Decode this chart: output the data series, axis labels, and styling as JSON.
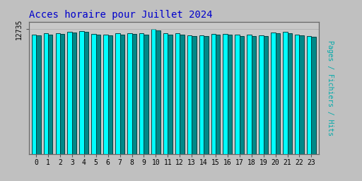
{
  "title": "Acces horaire pour Juillet 2024",
  "title_color": "#0000cc",
  "title_fontsize": 10,
  "ylabel_right": "Pages / Fichiers / Hits",
  "ylabel_right_color": "#00aaaa",
  "background_color": "#c0c0c0",
  "plot_bg_color": "#c8c8c8",
  "x_labels": [
    "0",
    "1",
    "2",
    "3",
    "4",
    "5",
    "6",
    "7",
    "8",
    "9",
    "10",
    "11",
    "12",
    "13",
    "14",
    "15",
    "16",
    "17",
    "18",
    "19",
    "20",
    "21",
    "22",
    "23"
  ],
  "pages": [
    12200,
    12300,
    12350,
    12500,
    12560,
    12250,
    12200,
    12310,
    12360,
    12290,
    12735,
    12310,
    12310,
    12110,
    12110,
    12260,
    12260,
    12155,
    12155,
    12110,
    12410,
    12460,
    12210,
    12060
  ],
  "fichiers": [
    12100,
    12200,
    12250,
    12400,
    12460,
    12150,
    12100,
    12210,
    12260,
    12190,
    12635,
    12210,
    12210,
    12010,
    12010,
    12160,
    12160,
    12055,
    12055,
    12010,
    12310,
    12360,
    12110,
    11960
  ],
  "bar_color_pages": "#00ffff",
  "bar_color_fichiers": "#008888",
  "bar_edge_color": "#004444",
  "bar_width": 0.38,
  "ylim_min": 0,
  "ylim_max": 13500,
  "ytick_value": 12735,
  "ytick_label": "12735",
  "ytick_fontsize": 7,
  "xtick_fontsize": 7,
  "font_family": "monospace",
  "grid_color": "#aaaaaa",
  "spine_color": "#666666"
}
